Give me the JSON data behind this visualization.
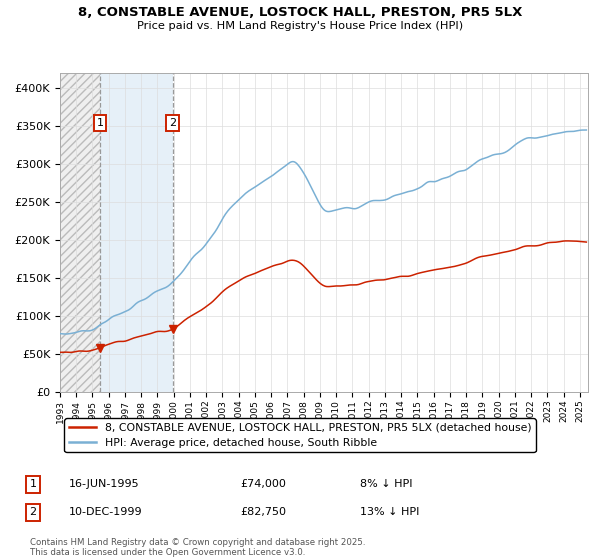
{
  "title_line1": "8, CONSTABLE AVENUE, LOSTOCK HALL, PRESTON, PR5 5LX",
  "title_line2": "Price paid vs. HM Land Registry's House Price Index (HPI)",
  "xlim_start": 1993.0,
  "xlim_end": 2025.5,
  "ylim": [
    0,
    420000
  ],
  "yticks": [
    0,
    50000,
    100000,
    150000,
    200000,
    250000,
    300000,
    350000,
    400000
  ],
  "ytick_labels": [
    "£0",
    "£50K",
    "£100K",
    "£150K",
    "£200K",
    "£250K",
    "£300K",
    "£350K",
    "£400K"
  ],
  "sale1_date": 1995.46,
  "sale1_price": 74000,
  "sale2_date": 1999.94,
  "sale2_price": 82750,
  "legend_line1": "8, CONSTABLE AVENUE, LOSTOCK HALL, PRESTON, PR5 5LX (detached house)",
  "legend_line2": "HPI: Average price, detached house, South Ribble",
  "annotation1": [
    "1",
    "16-JUN-1995",
    "£74,000",
    "8% ↓ HPI"
  ],
  "annotation2": [
    "2",
    "10-DEC-1999",
    "£82,750",
    "13% ↓ HPI"
  ],
  "footer": "Contains HM Land Registry data © Crown copyright and database right 2025.\nThis data is licensed under the Open Government Licence v3.0.",
  "red_color": "#cc2200",
  "blue_color": "#7ab0d4",
  "dash_color": "#999999"
}
